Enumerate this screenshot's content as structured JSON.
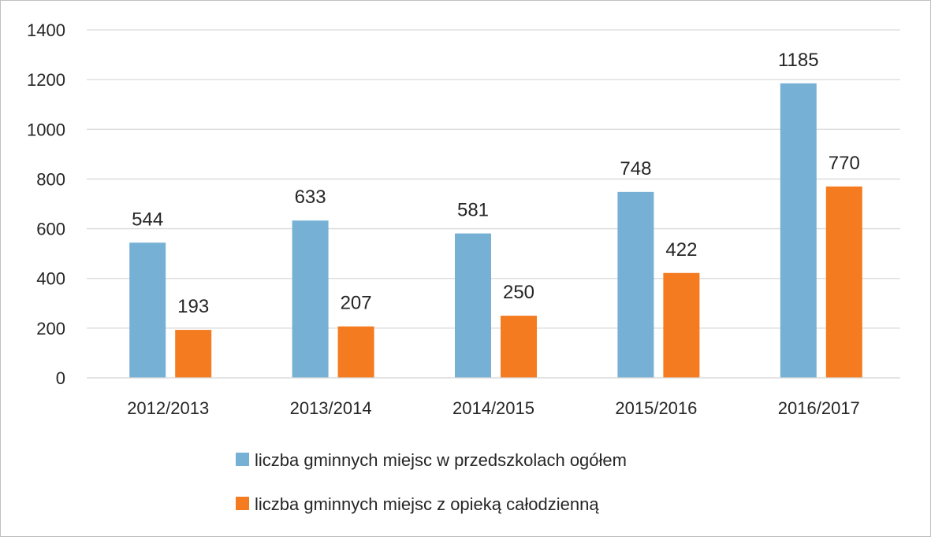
{
  "chart_data": {
    "type": "bar",
    "categories": [
      "2012/2013",
      "2013/2014",
      "2014/2015",
      "2015/2016",
      "2016/2017"
    ],
    "series": [
      {
        "name": "liczba gminnych miejsc w przedszkolach ogółem",
        "color": "#76b1d5",
        "values": [
          544,
          633,
          581,
          748,
          1185
        ]
      },
      {
        "name": "liczba gminnych miejsc z opieką całodzienną",
        "color": "#f47b20",
        "values": [
          193,
          207,
          250,
          422,
          770
        ]
      }
    ],
    "ylim": [
      0,
      1400
    ],
    "yticks": [
      "0",
      "200",
      "400",
      "600",
      "800",
      "1000",
      "1200",
      "1400"
    ],
    "ytick_values": [
      0,
      200,
      400,
      600,
      800,
      1000,
      1200,
      1400
    ],
    "grid": true,
    "legend_position": "bottom",
    "gridline_color": "#d9d9d9"
  }
}
